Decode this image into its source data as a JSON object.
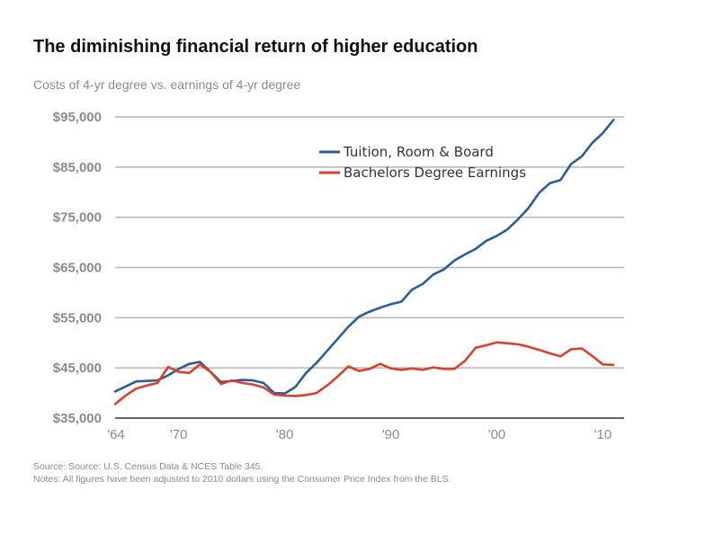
{
  "header": {
    "title": "The diminishing financial return of higher education",
    "subtitle": "Costs of 4-yr degree vs. earnings of 4-yr degree"
  },
  "footer": {
    "source": "Source: Source: U.S. Census Data & NCES Table 345.",
    "notes": "Notes: All figures have been adjusted to 2010 dollars using the Consumer Price Index from the BLS."
  },
  "colors": {
    "tuition": "#2e5d93",
    "earnings": "#d9412e",
    "grid": "#b3b3b3",
    "axis": "#666666"
  },
  "chart_data": {
    "type": "line",
    "title": "The diminishing financial return of higher education",
    "subtitle": "Costs of 4-yr degree vs. earnings of 4-yr degree",
    "xlabel": "",
    "ylabel": "",
    "xlim": [
      1964,
      2012
    ],
    "ylim": [
      35000,
      95000
    ],
    "y_ticks": [
      35000,
      45000,
      55000,
      65000,
      75000,
      85000,
      95000
    ],
    "y_tick_labels": [
      "$35,000",
      "$45,000",
      "$55,000",
      "$65,000",
      "$75,000",
      "$85,000",
      "$95,000"
    ],
    "x_ticks": [
      1964,
      1970,
      1980,
      1990,
      2000,
      2010
    ],
    "x_tick_labels": [
      "'64",
      "'70",
      "'80",
      "'90",
      "'00",
      "'10"
    ],
    "grid": true,
    "legend_position": "top-center",
    "series": [
      {
        "name": "Tuition, Room & Board",
        "color": "#2e5d93",
        "x": [
          1964,
          1965,
          1966,
          1967,
          1968,
          1969,
          1970,
          1971,
          1972,
          1973,
          1974,
          1975,
          1976,
          1977,
          1978,
          1979,
          1980,
          1981,
          1982,
          1983,
          1984,
          1985,
          1986,
          1987,
          1988,
          1989,
          1990,
          1991,
          1992,
          1993,
          1994,
          1995,
          1996,
          1997,
          1998,
          1999,
          2000,
          2001,
          2002,
          2003,
          2004,
          2005,
          2006,
          2007,
          2008,
          2009,
          2010,
          2011
        ],
        "values": [
          40300,
          41300,
          42300,
          42400,
          42500,
          43500,
          44800,
          45800,
          46200,
          44200,
          42200,
          42400,
          42600,
          42500,
          42000,
          40000,
          39900,
          41200,
          44000,
          46000,
          48400,
          50800,
          53200,
          55200,
          56200,
          57000,
          57700,
          58200,
          60600,
          61700,
          63600,
          64600,
          66400,
          67600,
          68700,
          70300,
          71300,
          72600,
          74600,
          76900,
          79900,
          81800,
          82400,
          85600,
          87100,
          89800,
          91800,
          94400
        ]
      },
      {
        "name": "Bachelors Degree Earnings",
        "color": "#d9412e",
        "x": [
          1964,
          1965,
          1966,
          1967,
          1968,
          1969,
          1970,
          1971,
          1972,
          1973,
          1974,
          1975,
          1976,
          1977,
          1978,
          1979,
          1980,
          1981,
          1982,
          1983,
          1984,
          1985,
          1986,
          1987,
          1988,
          1989,
          1990,
          1991,
          1992,
          1993,
          1994,
          1995,
          1996,
          1997,
          1998,
          1999,
          2000,
          2001,
          2002,
          2003,
          2004,
          2005,
          2006,
          2007,
          2008,
          2009,
          2010,
          2011
        ],
        "values": [
          37800,
          39500,
          40900,
          41500,
          42000,
          45200,
          44200,
          44000,
          45700,
          44200,
          41800,
          42500,
          42000,
          41700,
          41100,
          39700,
          39500,
          39400,
          39600,
          40000,
          41500,
          43300,
          45300,
          44400,
          44800,
          45800,
          44900,
          44600,
          44900,
          44600,
          45100,
          44800,
          44800,
          46400,
          49000,
          49500,
          50100,
          49900,
          49700,
          49200,
          48600,
          47900,
          47300,
          48700,
          48900,
          47400,
          45700,
          45600
        ]
      }
    ]
  }
}
